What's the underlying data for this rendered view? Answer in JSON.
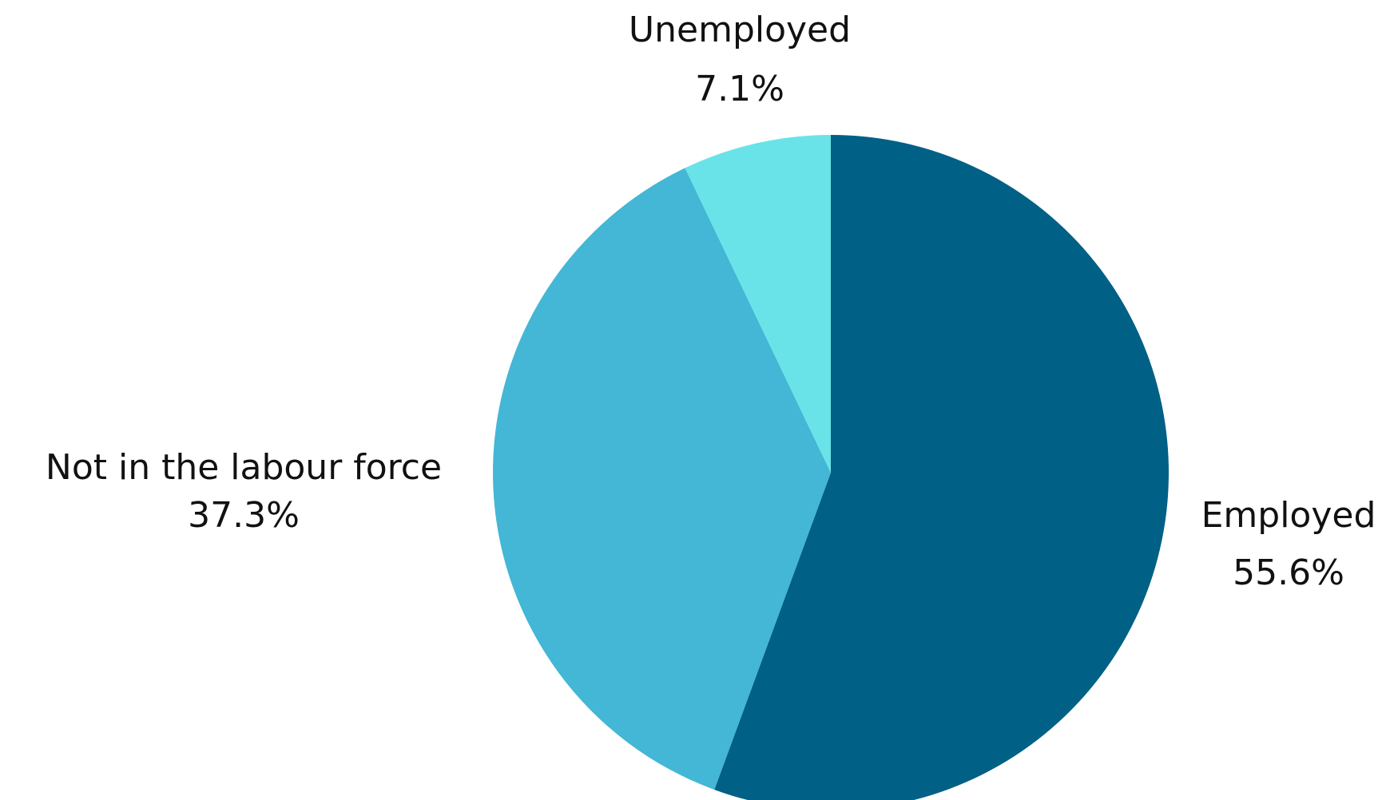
{
  "chart_data": {
    "type": "pie",
    "title": "",
    "slices": [
      {
        "label": "Employed",
        "value": 55.6,
        "value_label": "55.6%",
        "color": "#006085"
      },
      {
        "label": "Not in the labour force",
        "value": 37.3,
        "value_label": "37.3%",
        "color": "#43b7d5"
      },
      {
        "label": "Unemployed",
        "value": 7.1,
        "value_label": "7.1%",
        "color": "#69e3e8"
      }
    ],
    "start": "12 o'clock",
    "direction": "clockwise",
    "legend": "none",
    "data_labels": "outside"
  }
}
